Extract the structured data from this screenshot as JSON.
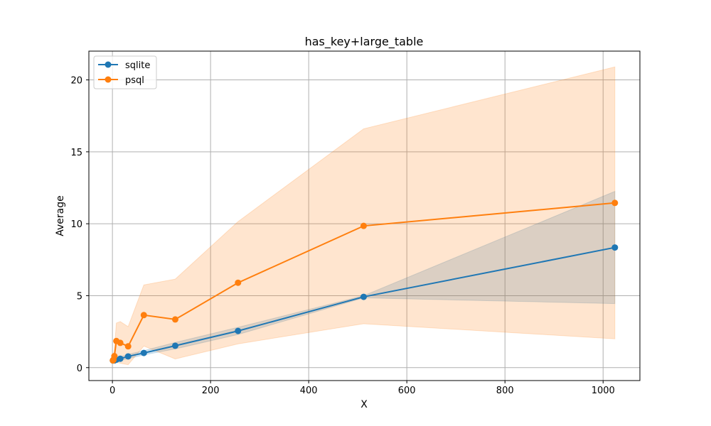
{
  "chart_data": {
    "type": "line",
    "title": "has_key+large_table",
    "xlabel": "X",
    "ylabel": "Average",
    "xlim": [
      -48,
      1075
    ],
    "ylim": [
      -0.9,
      22
    ],
    "xticks": [
      0,
      200,
      400,
      600,
      800,
      1000
    ],
    "yticks": [
      0,
      5,
      10,
      15,
      20
    ],
    "grid": true,
    "legend_position": "top-left",
    "series": [
      {
        "name": "sqlite",
        "color": "#1f77b4",
        "x": [
          1,
          2,
          4,
          8,
          16,
          32,
          64,
          128,
          256,
          512,
          1024
        ],
        "y": [
          0.5,
          0.5,
          0.5,
          0.55,
          0.62,
          0.78,
          1.02,
          1.52,
          2.55,
          4.92,
          8.35
        ],
        "lower": [
          0.4,
          0.4,
          0.42,
          0.45,
          0.5,
          0.62,
          0.88,
          1.3,
          2.3,
          4.85,
          4.45
        ],
        "upper": [
          0.6,
          0.6,
          0.6,
          0.65,
          0.75,
          0.92,
          1.18,
          1.75,
          2.8,
          5.0,
          12.25
        ]
      },
      {
        "name": "psql",
        "color": "#ff7f0e",
        "x": [
          1,
          2,
          4,
          8,
          16,
          32,
          64,
          128,
          256,
          512,
          1024
        ],
        "y": [
          0.5,
          0.55,
          0.8,
          1.85,
          1.72,
          1.48,
          3.65,
          3.35,
          5.9,
          9.85,
          11.45
        ],
        "lower": [
          0.3,
          0.3,
          0.35,
          0.4,
          0.3,
          0.2,
          1.5,
          0.6,
          1.65,
          3.05,
          2.0
        ],
        "upper": [
          0.7,
          0.8,
          1.3,
          3.1,
          3.2,
          2.85,
          5.75,
          6.15,
          10.15,
          16.6,
          20.9
        ]
      }
    ]
  }
}
